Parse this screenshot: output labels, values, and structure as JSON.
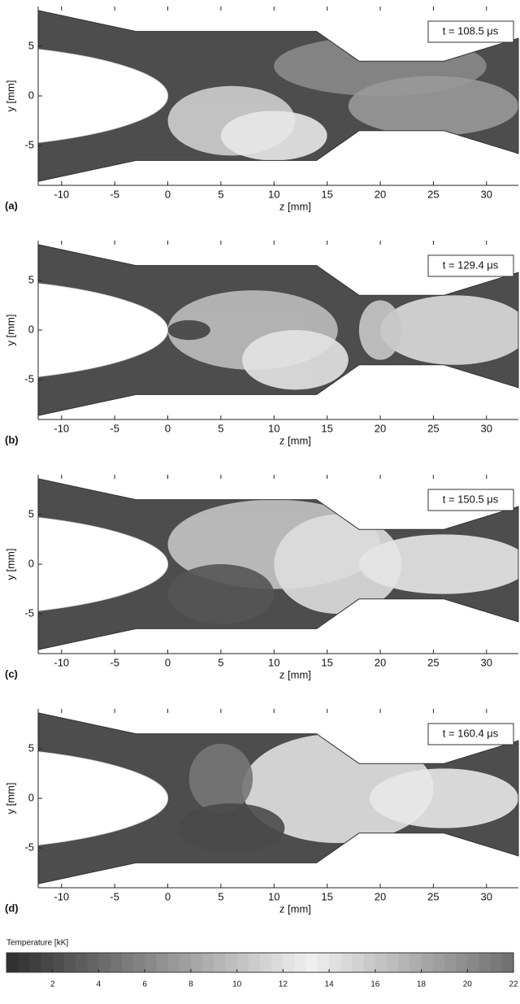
{
  "chart_data": [
    {
      "type": "contour",
      "panel_label": "(a)",
      "annotation": "t = 108.5 μs",
      "xlabel": "z [mm]",
      "ylabel": "y [mm]",
      "xlim": [
        -12.2,
        33
      ],
      "ylim": [
        -9,
        9
      ],
      "xticks": [
        -10,
        -5,
        0,
        5,
        10,
        15,
        20,
        25,
        30
      ],
      "yticks": [
        -5,
        0,
        5
      ]
    },
    {
      "type": "contour",
      "panel_label": "(b)",
      "annotation": "t = 129.4 μs",
      "xlabel": "z [mm]",
      "ylabel": "y [mm]",
      "xlim": [
        -12.2,
        33
      ],
      "ylim": [
        -9,
        9
      ],
      "xticks": [
        -10,
        -5,
        0,
        5,
        10,
        15,
        20,
        25,
        30
      ],
      "yticks": [
        -5,
        0,
        5
      ]
    },
    {
      "type": "contour",
      "panel_label": "(c)",
      "annotation": "t = 150.5 μs",
      "xlabel": "z [mm]",
      "ylabel": "y [mm]",
      "xlim": [
        -12.2,
        33
      ],
      "ylim": [
        -9,
        9
      ],
      "xticks": [
        -10,
        -5,
        0,
        5,
        10,
        15,
        20,
        25,
        30
      ],
      "yticks": [
        -5,
        0,
        5
      ]
    },
    {
      "type": "contour",
      "panel_label": "(d)",
      "annotation": "t = 160.4 μs",
      "xlabel": "z [mm]",
      "ylabel": "y [mm]",
      "xlim": [
        -12.2,
        33
      ],
      "ylim": [
        -9,
        9
      ],
      "xticks": [
        -10,
        -5,
        0,
        5,
        10,
        15,
        20,
        25,
        30
      ],
      "yticks": [
        -5,
        0,
        5
      ]
    },
    {
      "type": "colorbar",
      "title": "Temperature [kK]",
      "xlim": [
        0,
        22
      ],
      "xticks": [
        2,
        4,
        6,
        8,
        10,
        12,
        14,
        16,
        18,
        20,
        22
      ]
    }
  ]
}
